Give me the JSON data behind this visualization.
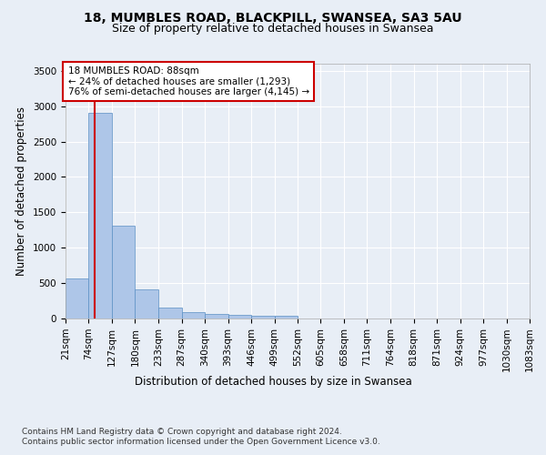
{
  "title_line1": "18, MUMBLES ROAD, BLACKPILL, SWANSEA, SA3 5AU",
  "title_line2": "Size of property relative to detached houses in Swansea",
  "xlabel": "Distribution of detached houses by size in Swansea",
  "ylabel": "Number of detached properties",
  "footnote1": "Contains HM Land Registry data © Crown copyright and database right 2024.",
  "footnote2": "Contains public sector information licensed under the Open Government Licence v3.0.",
  "annotation_line1": "18 MUMBLES ROAD: 88sqm",
  "annotation_line2": "← 24% of detached houses are smaller (1,293)",
  "annotation_line3": "76% of semi-detached houses are larger (4,145) →",
  "bar_edges": [
    21,
    74,
    127,
    180,
    233,
    287,
    340,
    393,
    446,
    499,
    552,
    605,
    658,
    711,
    764,
    818,
    871,
    924,
    977,
    1030,
    1083
  ],
  "bar_heights": [
    570,
    2900,
    1310,
    410,
    150,
    85,
    60,
    55,
    45,
    40,
    0,
    0,
    0,
    0,
    0,
    0,
    0,
    0,
    0,
    0
  ],
  "bar_color": "#aec6e8",
  "bar_edgecolor": "#5a8fc4",
  "property_line_x": 88,
  "ylim": [
    0,
    3600
  ],
  "yticks": [
    0,
    500,
    1000,
    1500,
    2000,
    2500,
    3000,
    3500
  ],
  "bg_color": "#e8eef6",
  "plot_bg_color": "#e8eef6",
  "grid_color": "#ffffff",
  "annotation_box_color": "#cc0000",
  "title_fontsize": 10,
  "subtitle_fontsize": 9,
  "axis_label_fontsize": 8.5,
  "tick_fontsize": 7.5,
  "footnote_fontsize": 6.5
}
